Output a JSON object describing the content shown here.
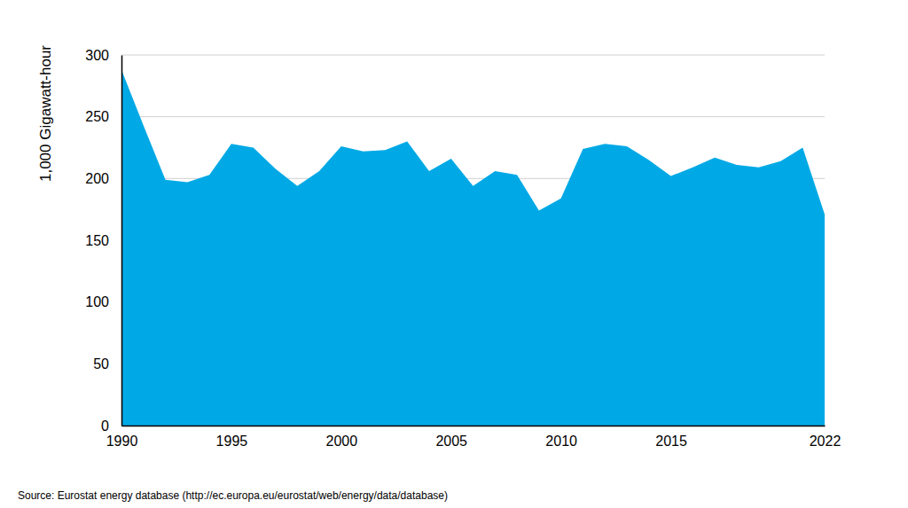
{
  "chart_data": {
    "type": "area",
    "y_label": "1,000 Gigawatt-hour",
    "source": "Source: Eurostat energy database (http://ec.europa.eu/eurostat/web/energy/data/database)",
    "x": [
      1990,
      1991,
      1992,
      1993,
      1994,
      1995,
      1996,
      1997,
      1998,
      1999,
      2000,
      2001,
      2002,
      2003,
      2004,
      2005,
      2006,
      2007,
      2008,
      2009,
      2010,
      2011,
      2012,
      2013,
      2014,
      2015,
      2016,
      2017,
      2018,
      2019,
      2020,
      2021,
      2022
    ],
    "values": [
      288,
      243,
      199,
      197,
      203,
      228,
      225,
      208,
      194,
      206,
      226,
      222,
      223,
      230,
      206,
      216,
      194,
      206,
      203,
      174,
      184,
      224,
      228,
      226,
      215,
      202,
      209,
      217,
      211,
      209,
      214,
      225,
      171
    ],
    "color": "#00a9e6",
    "xlim": [
      1990,
      2022
    ],
    "xticks": [
      1990,
      1995,
      2000,
      2005,
      2010,
      2015,
      2022
    ],
    "ylim": [
      0,
      300
    ],
    "yticks": [
      0,
      50,
      100,
      150,
      200,
      250,
      300
    ],
    "grid": true
  }
}
